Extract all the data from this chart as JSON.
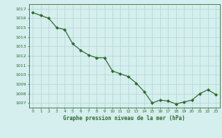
{
  "x": [
    0,
    1,
    2,
    3,
    4,
    5,
    6,
    7,
    8,
    9,
    10,
    11,
    12,
    13,
    14,
    15,
    16,
    17,
    18,
    19,
    20,
    21,
    22,
    23
  ],
  "y": [
    1016.6,
    1016.3,
    1016.0,
    1015.0,
    1014.8,
    1013.3,
    1012.6,
    1012.1,
    1011.8,
    1011.8,
    1010.4,
    1010.1,
    1009.8,
    1009.1,
    1008.2,
    1007.0,
    1007.3,
    1007.2,
    1006.9,
    1007.1,
    1007.3,
    1008.0,
    1008.4,
    1007.9
  ],
  "line_color": "#2d6a2d",
  "marker_color": "#2d6a2d",
  "bg_color": "#d5eeee",
  "grid_color": "#b8d8d8",
  "xlabel": "Graphe pression niveau de la mer (hPa)",
  "xlabel_color": "#2d6a2d",
  "tick_color": "#2d6a2d",
  "spine_color": "#2d6a2d",
  "ylim_min": 1006.5,
  "ylim_max": 1017.5,
  "yticks": [
    1007,
    1008,
    1009,
    1010,
    1011,
    1012,
    1013,
    1014,
    1015,
    1016,
    1017
  ],
  "xticks": [
    0,
    1,
    2,
    3,
    4,
    5,
    6,
    7,
    8,
    9,
    10,
    11,
    12,
    13,
    14,
    15,
    16,
    17,
    18,
    19,
    20,
    21,
    22,
    23
  ]
}
